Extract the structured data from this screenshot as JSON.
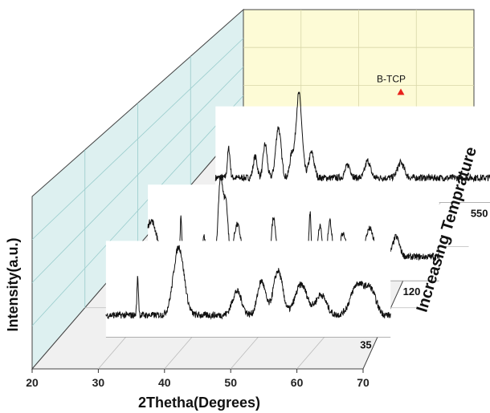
{
  "chart_data": {
    "type": "line",
    "title": "",
    "xlabel": "2Thetha(Degrees)",
    "ylabel": "Intensity(a.u.)",
    "zlabel": "Increasing Temprature",
    "xlim": [
      20,
      70
    ],
    "x_ticks": [
      20,
      30,
      40,
      50,
      60,
      70
    ],
    "grid": true,
    "annotation": {
      "text": "B-TCP",
      "x": 54,
      "series": "550",
      "marker": "red-triangle"
    },
    "series": [
      {
        "name": "35",
        "x_range": [
          27,
          70
        ],
        "noise": 0.05,
        "peaks": [
          [
            31.8,
            0.55,
            0.12
          ],
          [
            38.0,
            1.0,
            0.8
          ],
          [
            46.8,
            0.35,
            0.7
          ],
          [
            50.5,
            0.5,
            0.6
          ],
          [
            53.0,
            0.65,
            0.7
          ],
          [
            56.5,
            0.45,
            0.9
          ],
          [
            59.5,
            0.3,
            0.8
          ],
          [
            65.0,
            0.45,
            1.0
          ],
          [
            67.0,
            0.35,
            0.8
          ]
        ]
      },
      {
        "name": "120",
        "x_range": [
          26,
          70
        ],
        "noise": 0.04,
        "peaks": [
          [
            26.5,
            0.45,
            0.8
          ],
          [
            31.0,
            0.5,
            0.12
          ],
          [
            34.5,
            0.25,
            0.2
          ],
          [
            37.0,
            1.0,
            0.35
          ],
          [
            37.8,
            0.65,
            0.3
          ],
          [
            39.5,
            0.4,
            0.5
          ],
          [
            45.0,
            0.5,
            0.3
          ],
          [
            50.5,
            0.55,
            0.15
          ],
          [
            52.0,
            0.4,
            0.3
          ],
          [
            53.5,
            0.45,
            0.3
          ],
          [
            55.5,
            0.3,
            0.4
          ],
          [
            59.5,
            0.35,
            0.6
          ],
          [
            63.5,
            0.25,
            0.5
          ]
        ]
      },
      {
        "name": "550",
        "x_range": [
          26,
          70
        ],
        "noise": 0.04,
        "peaks": [
          [
            28.0,
            0.35,
            0.2
          ],
          [
            32.0,
            0.25,
            0.3
          ],
          [
            33.5,
            0.4,
            0.3
          ],
          [
            35.5,
            0.6,
            0.4
          ],
          [
            37.5,
            0.25,
            0.3
          ],
          [
            38.6,
            1.0,
            0.45
          ],
          [
            40.5,
            0.3,
            0.4
          ],
          [
            46.0,
            0.15,
            0.4
          ],
          [
            49.0,
            0.2,
            0.4
          ],
          [
            54.0,
            0.18,
            0.5
          ]
        ]
      }
    ]
  }
}
